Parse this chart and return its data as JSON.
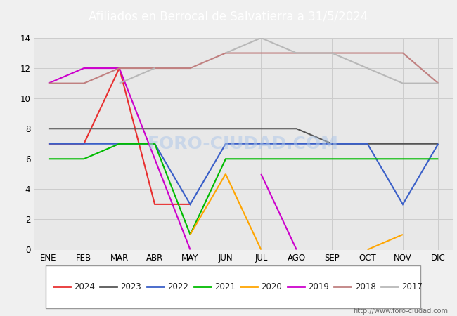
{
  "title": "Afiliados en Berrocal de Salvatierra a 31/5/2024",
  "title_color": "#ffffff",
  "title_bg": "#5b7fcb",
  "months": [
    "ENE",
    "FEB",
    "MAR",
    "ABR",
    "MAY",
    "JUN",
    "JUL",
    "AGO",
    "SEP",
    "OCT",
    "NOV",
    "DIC"
  ],
  "ylim": [
    0,
    14
  ],
  "yticks": [
    0,
    2,
    4,
    6,
    8,
    10,
    12,
    14
  ],
  "series": {
    "2024": {
      "color": "#e83030",
      "values": [
        7,
        7,
        12,
        3,
        3,
        null,
        null,
        null,
        null,
        null,
        null,
        null
      ]
    },
    "2023": {
      "color": "#555555",
      "values": [
        8,
        8,
        8,
        8,
        8,
        8,
        8,
        8,
        7,
        7,
        7,
        7
      ]
    },
    "2022": {
      "color": "#3a5fc8",
      "values": [
        7,
        7,
        7,
        7,
        3,
        7,
        7,
        7,
        7,
        7,
        3,
        7
      ]
    },
    "2021": {
      "color": "#00bb00",
      "values": [
        6,
        6,
        7,
        7,
        1,
        6,
        6,
        6,
        6,
        6,
        6,
        6
      ]
    },
    "2020": {
      "color": "#ffa500",
      "values": [
        null,
        null,
        null,
        null,
        1,
        5,
        0,
        null,
        null,
        0,
        1,
        null
      ]
    },
    "2019": {
      "color": "#cc00cc",
      "values": [
        11,
        12,
        12,
        6,
        0,
        null,
        5,
        0,
        null,
        null,
        null,
        null
      ]
    },
    "2018": {
      "color": "#c08080",
      "values": [
        11,
        11,
        12,
        12,
        12,
        13,
        13,
        13,
        13,
        13,
        13,
        11
      ]
    },
    "2017": {
      "color": "#b8b8b8",
      "values": [
        null,
        null,
        11,
        12,
        null,
        13,
        14,
        13,
        13,
        12,
        11,
        11
      ]
    }
  },
  "grid_color": "#cccccc",
  "plot_bg": "#e8e8e8",
  "fig_bg": "#f0f0f0",
  "watermark_text": "http://www.foro-ciudad.com",
  "watermark_chart": "FORO-CIUDAD.COM",
  "legend_order": [
    "2024",
    "2023",
    "2022",
    "2021",
    "2020",
    "2019",
    "2018",
    "2017"
  ]
}
